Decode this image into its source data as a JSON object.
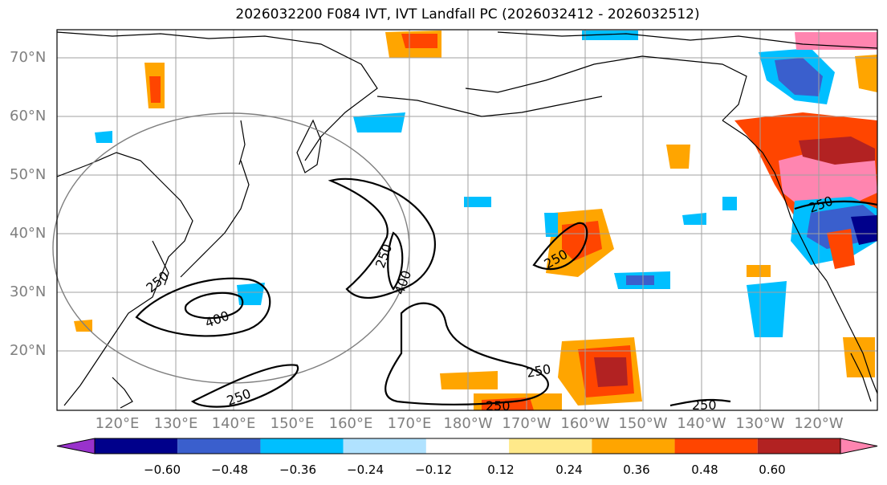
{
  "title": "2026032200 F084 IVT, IVT Landfall PC (2026032412 - 2026032512)",
  "lat_labels": [
    "70°N",
    "60°N",
    "50°N",
    "40°N",
    "30°N",
    "20°N"
  ],
  "lon_labels": [
    "120°E",
    "130°E",
    "140°E",
    "150°E",
    "160°E",
    "170°E",
    "180°W",
    "170°W",
    "160°W",
    "150°W",
    "140°W",
    "130°W",
    "120°W"
  ],
  "contour_labels": [
    "250",
    "400",
    "250",
    "400",
    "250",
    "250",
    "250",
    "250",
    "250"
  ],
  "colorbar": {
    "ticks": [
      "−0.60",
      "−0.48",
      "−0.36",
      "−0.24",
      "−0.12",
      "0.12",
      "0.24",
      "0.36",
      "0.48",
      "0.60"
    ],
    "colors": [
      "#9932cc",
      "#00008b",
      "#3a5fcd",
      "#00bfff",
      "#b0e2ff",
      "#ffffff",
      "#ffe98a",
      "#ffa500",
      "#ff4500",
      "#b22222",
      "#ff85b0"
    ]
  },
  "map_data": {
    "lat_range": [
      10,
      75
    ],
    "lon_range": [
      110,
      251
    ],
    "contour_levels": [
      250,
      400
    ]
  }
}
